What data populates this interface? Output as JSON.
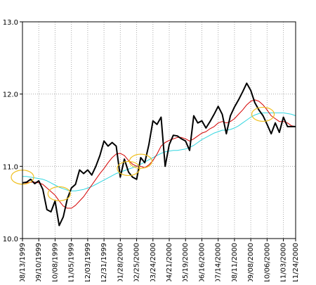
{
  "chart_data": {
    "type": "line",
    "title": "",
    "xlabel": "",
    "ylabel": "",
    "ylim": [
      10.0,
      13.0
    ],
    "y_ticks": [
      "10.0",
      "11.0",
      "12.0",
      "13.0"
    ],
    "x_tick_labels": [
      "08/13/1999",
      "09/10/1999",
      "10/08/1999",
      "11/05/1999",
      "12/03/1999",
      "12/31/1999",
      "01/28/2000",
      "02/25/2000",
      "03/24/2000",
      "04/21/2000",
      "05/19/2000",
      "06/16/2000",
      "07/14/2000",
      "08/11/2000",
      "09/08/2000",
      "10/06/2000",
      "11/03/2000",
      "11/24/2000"
    ],
    "x_tick_positions": [
      0,
      4,
      8,
      12,
      16,
      20,
      24,
      28,
      32,
      36,
      40,
      44,
      48,
      52,
      56,
      60,
      64,
      67
    ],
    "grid": true,
    "colors": {
      "price": "#000000",
      "ma_short": "#d40000",
      "ma_long": "#33d6e0",
      "highlight": "#f0c020",
      "grid": "#aaaaaa",
      "axis": "#000000"
    },
    "series": [
      {
        "role": "price",
        "values": [
          10.77,
          10.78,
          10.82,
          10.76,
          10.8,
          10.68,
          10.4,
          10.37,
          10.52,
          10.18,
          10.3,
          10.55,
          10.7,
          10.75,
          10.95,
          10.9,
          10.95,
          10.88,
          11.0,
          11.15,
          11.35,
          11.28,
          11.33,
          11.28,
          10.85,
          11.1,
          10.92,
          10.85,
          10.82,
          11.12,
          11.05,
          11.3,
          11.63,
          11.58,
          11.68,
          11.0,
          11.3,
          11.43,
          11.42,
          11.38,
          11.35,
          11.22,
          11.7,
          11.6,
          11.63,
          11.53,
          11.62,
          11.72,
          11.83,
          11.72,
          11.45,
          11.7,
          11.82,
          11.92,
          12.03,
          12.15,
          12.05,
          11.88,
          11.78,
          11.7,
          11.58,
          11.45,
          11.6,
          11.47,
          11.68,
          11.55,
          11.55,
          11.55
        ]
      },
      {
        "role": "ma_short",
        "values": [
          10.77,
          10.77,
          10.78,
          10.78,
          10.77,
          10.75,
          10.7,
          10.65,
          10.6,
          10.52,
          10.45,
          10.42,
          10.42,
          10.46,
          10.52,
          10.58,
          10.66,
          10.74,
          10.82,
          10.9,
          10.97,
          11.05,
          11.12,
          11.17,
          11.18,
          11.15,
          11.08,
          11.03,
          11.0,
          11.0,
          10.98,
          11.02,
          11.08,
          11.17,
          11.28,
          11.33,
          11.36,
          11.38,
          11.4,
          11.4,
          11.38,
          11.35,
          11.38,
          11.42,
          11.46,
          11.48,
          11.52,
          11.55,
          11.6,
          11.62,
          11.6,
          11.62,
          11.66,
          11.72,
          11.78,
          11.85,
          11.9,
          11.92,
          11.9,
          11.85,
          11.78,
          11.7,
          11.66,
          11.62,
          11.62,
          11.6,
          11.56,
          11.55
        ]
      },
      {
        "role": "ma_long",
        "values": [
          10.86,
          10.86,
          10.85,
          10.84,
          10.83,
          10.82,
          10.8,
          10.77,
          10.74,
          10.71,
          10.69,
          10.67,
          10.66,
          10.66,
          10.67,
          10.68,
          10.7,
          10.72,
          10.75,
          10.78,
          10.81,
          10.84,
          10.87,
          10.9,
          10.92,
          10.94,
          10.96,
          10.98,
          11.0,
          11.03,
          11.06,
          11.09,
          11.12,
          11.15,
          11.18,
          11.2,
          11.21,
          11.22,
          11.22,
          11.23,
          11.24,
          11.26,
          11.29,
          11.33,
          11.37,
          11.4,
          11.43,
          11.46,
          11.48,
          11.5,
          11.5,
          11.51,
          11.53,
          11.56,
          11.6,
          11.64,
          11.68,
          11.71,
          11.73,
          11.74,
          11.74,
          11.74,
          11.74,
          11.74,
          11.74,
          11.73,
          11.72,
          11.7
        ]
      }
    ],
    "crossover_markers": [
      {
        "x": 0,
        "y": 10.85
      },
      {
        "x": 9,
        "y": 10.62
      },
      {
        "x": 26,
        "y": 10.97
      },
      {
        "x": 29,
        "y": 11.07
      },
      {
        "x": 59,
        "y": 11.72
      }
    ]
  }
}
